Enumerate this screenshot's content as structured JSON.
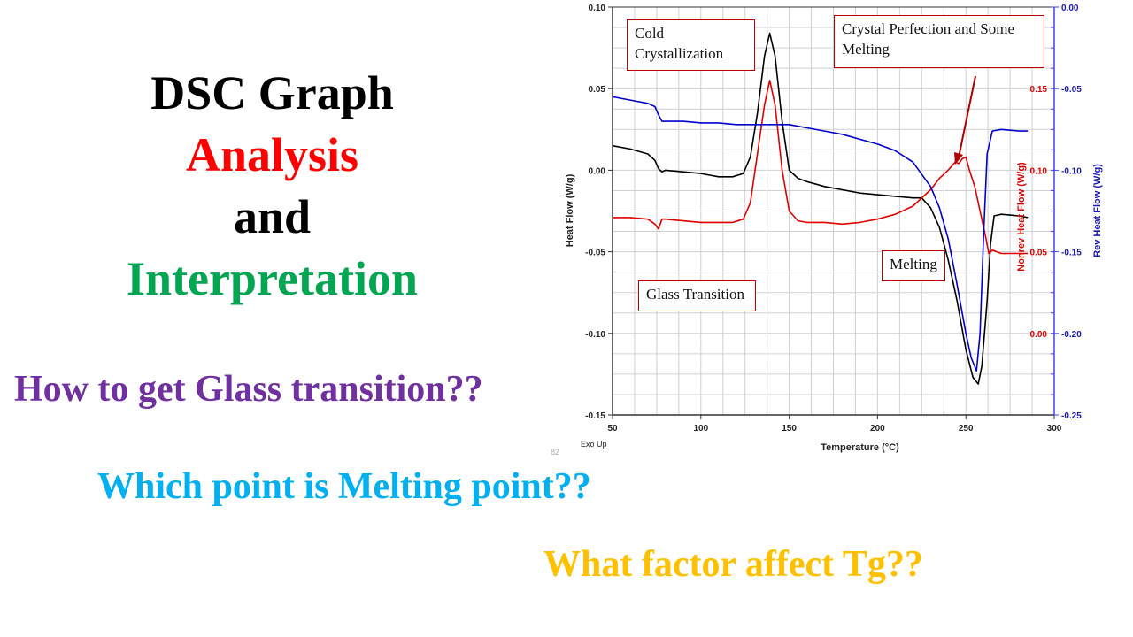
{
  "title": {
    "line1": "DSC Graph",
    "line2": "Analysis",
    "line3": "and",
    "line4": "Interpretation",
    "colors": {
      "line1": "#000000",
      "line2": "#ff0000",
      "line3": "#000000",
      "line4": "#00a651"
    }
  },
  "questions": [
    {
      "text": "How to get Glass transition??",
      "color": "#7030a0"
    },
    {
      "text": "Which point is Melting point??",
      "color": "#00b0f0"
    },
    {
      "text": "What factor affect Tg??",
      "color": "#ffc000"
    }
  ],
  "chart_data": {
    "type": "line",
    "title": "",
    "xlabel": "Temperature (°C)",
    "ylabel": "Heat Flow (W/g)",
    "ylabel_right_1": "Nonrev Heat Flow (W/g)",
    "ylabel_right_2": "Rev Heat Flow (W/g)",
    "xlim": [
      50,
      300
    ],
    "ylim": [
      -0.15,
      0.1
    ],
    "ylim_right_nonrev": [
      -0.02,
      0.15
    ],
    "ylim_right_rev": [
      -0.25,
      0.0
    ],
    "x_ticks": [
      "50",
      "100",
      "150",
      "200",
      "250",
      "300"
    ],
    "y_ticks_left": [
      "0.10",
      "0.05",
      "0.00",
      "-0.05",
      "-0.10",
      "-0.15"
    ],
    "y_ticks_nonrev": [
      "0.15",
      "0.10",
      "0.05",
      "0.00"
    ],
    "y_ticks_rev": [
      "0.00",
      "-0.05",
      "-0.10",
      "-0.15",
      "-0.20",
      "-0.25"
    ],
    "grid": true,
    "corner_note": "Exo Up",
    "page_number": "82",
    "series": [
      {
        "name": "Heat Flow",
        "axis": "left",
        "color": "#000000",
        "x": [
          50,
          60,
          70,
          74,
          76,
          78,
          80,
          90,
          100,
          110,
          118,
          124,
          128,
          132,
          136,
          139,
          142,
          146,
          150,
          155,
          160,
          170,
          180,
          190,
          200,
          210,
          220,
          225,
          230,
          235,
          240,
          245,
          250,
          254,
          257,
          259,
          262,
          264,
          266,
          270,
          280,
          285
        ],
        "values": [
          0.015,
          0.013,
          0.01,
          0.006,
          0.001,
          -0.001,
          0.0,
          -0.001,
          -0.002,
          -0.004,
          -0.004,
          -0.002,
          0.008,
          0.035,
          0.07,
          0.084,
          0.07,
          0.03,
          0.0,
          -0.005,
          -0.007,
          -0.01,
          -0.012,
          -0.014,
          -0.015,
          -0.016,
          -0.017,
          -0.017,
          -0.023,
          -0.035,
          -0.055,
          -0.08,
          -0.11,
          -0.127,
          -0.131,
          -0.12,
          -0.08,
          -0.045,
          -0.028,
          -0.027,
          -0.028,
          -0.029
        ]
      },
      {
        "name": "Nonrev Heat Flow",
        "axis": "right_nonrev",
        "color": "#e00000",
        "x": [
          50,
          60,
          70,
          74,
          76,
          78,
          80,
          90,
          100,
          110,
          118,
          124,
          128,
          132,
          136,
          139,
          142,
          146,
          150,
          155,
          160,
          170,
          180,
          190,
          200,
          210,
          220,
          230,
          235,
          240,
          244,
          246,
          248,
          250,
          252,
          255,
          258,
          261,
          263,
          265,
          270,
          280,
          285
        ],
        "values": [
          0.071,
          0.071,
          0.07,
          0.067,
          0.064,
          0.07,
          0.07,
          0.069,
          0.068,
          0.068,
          0.068,
          0.07,
          0.08,
          0.11,
          0.14,
          0.155,
          0.14,
          0.1,
          0.075,
          0.069,
          0.068,
          0.068,
          0.067,
          0.068,
          0.07,
          0.073,
          0.078,
          0.088,
          0.095,
          0.1,
          0.105,
          0.104,
          0.107,
          0.108,
          0.1,
          0.09,
          0.075,
          0.06,
          0.049,
          0.051,
          0.049,
          0.049,
          0.049
        ]
      },
      {
        "name": "Rev Heat Flow",
        "axis": "right_rev",
        "color": "#0000cc",
        "x": [
          50,
          60,
          70,
          74,
          76,
          78,
          80,
          90,
          100,
          110,
          120,
          130,
          140,
          150,
          160,
          170,
          180,
          190,
          200,
          210,
          220,
          230,
          235,
          240,
          245,
          250,
          253,
          256,
          258,
          260,
          262,
          265,
          270,
          280,
          285
        ],
        "values": [
          -0.055,
          -0.057,
          -0.059,
          -0.061,
          -0.066,
          -0.07,
          -0.07,
          -0.07,
          -0.071,
          -0.071,
          -0.072,
          -0.072,
          -0.072,
          -0.072,
          -0.074,
          -0.076,
          -0.078,
          -0.081,
          -0.084,
          -0.088,
          -0.095,
          -0.11,
          -0.123,
          -0.142,
          -0.17,
          -0.2,
          -0.215,
          -0.223,
          -0.2,
          -0.14,
          -0.09,
          -0.076,
          -0.075,
          -0.076,
          -0.076
        ]
      }
    ],
    "annotations": [
      {
        "text_line1": "Cold",
        "text_line2": "Crystallization"
      },
      {
        "text_line1": "Crystal Perfection and Some",
        "text_line2": "Melting"
      },
      {
        "text": "Glass Transition"
      },
      {
        "text": "Melting"
      }
    ]
  }
}
